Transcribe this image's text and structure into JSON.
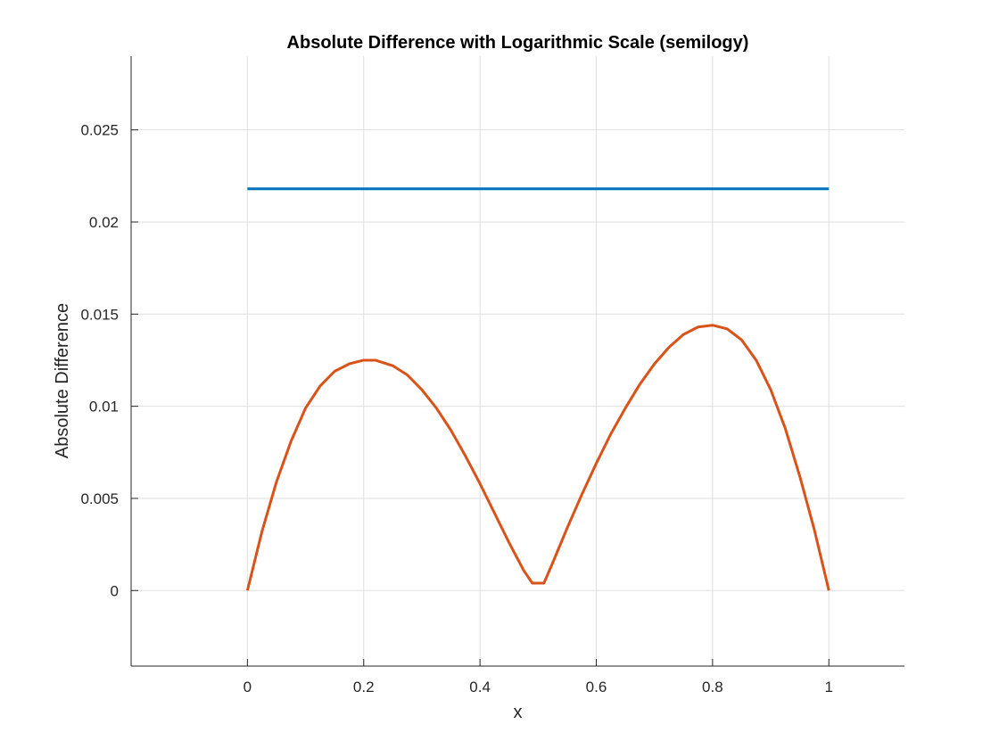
{
  "chart_data": {
    "type": "line",
    "title": "Absolute Difference with Logarithmic Scale (semilogy)",
    "xlabel": "x",
    "ylabel": "Absolute Difference",
    "xlim": [
      -0.2,
      1.13
    ],
    "ylim": [
      -0.0041,
      0.029
    ],
    "xticks": [
      0,
      0.2,
      0.4,
      0.6,
      0.8,
      1
    ],
    "xtick_labels": [
      "0",
      "0.2",
      "0.4",
      "0.6",
      "0.8",
      "1"
    ],
    "yticks": [
      0,
      0.005,
      0.01,
      0.015,
      0.02,
      0.025
    ],
    "ytick_labels": [
      "0",
      "0.005",
      "0.01",
      "0.015",
      "0.02",
      "0.025"
    ],
    "grid": true,
    "series": [
      {
        "color": "#0072BD",
        "x": [
          0,
          1
        ],
        "y": [
          0.0218,
          0.0218
        ]
      },
      {
        "color": "#D95319",
        "x": [
          0,
          0.025,
          0.05,
          0.075,
          0.1,
          0.125,
          0.15,
          0.175,
          0.2,
          0.22,
          0.25,
          0.275,
          0.3,
          0.325,
          0.35,
          0.375,
          0.4,
          0.425,
          0.45,
          0.475,
          0.49,
          0.5,
          0.51,
          0.525,
          0.55,
          0.575,
          0.6,
          0.625,
          0.65,
          0.675,
          0.7,
          0.725,
          0.75,
          0.775,
          0.8,
          0.825,
          0.85,
          0.875,
          0.9,
          0.925,
          0.95,
          0.975,
          1
        ],
        "y": [
          0,
          0.0032,
          0.0059,
          0.0081,
          0.0099,
          0.0111,
          0.0119,
          0.0123,
          0.0125,
          0.0125,
          0.0122,
          0.0117,
          0.0109,
          0.0099,
          0.0087,
          0.0073,
          0.0058,
          0.0042,
          0.0026,
          0.0011,
          0.0004,
          0.0004,
          0.0004,
          0.0015,
          0.0034,
          0.0052,
          0.0069,
          0.0085,
          0.0099,
          0.0112,
          0.0123,
          0.0132,
          0.0139,
          0.0143,
          0.0144,
          0.0142,
          0.0136,
          0.0125,
          0.0109,
          0.0088,
          0.0062,
          0.0033,
          0
        ]
      }
    ]
  }
}
